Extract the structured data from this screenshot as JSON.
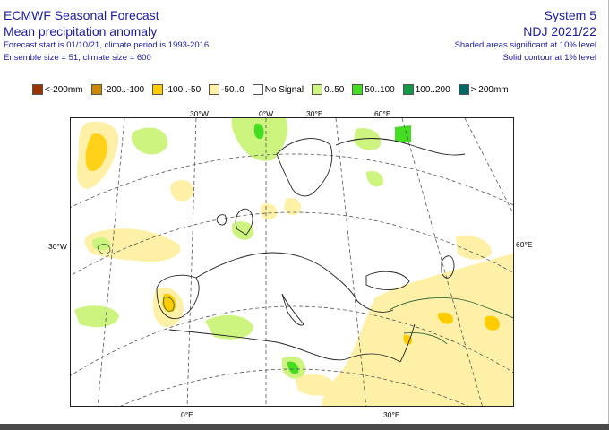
{
  "header": {
    "title_line1": "ECMWF Seasonal Forecast",
    "title_line2": "Mean precipitation anomaly",
    "info_line1": "Forecast start is 01/10/21, climate period is 1993-2016",
    "info_line2": "Ensemble size = 51, climate size = 600",
    "system": "System 5",
    "period": "NDJ 2021/22",
    "note1": "Shaded areas significant at 10% level",
    "note2": "Solid contour at 1% level"
  },
  "legend": [
    {
      "label": "<-200mm",
      "color": "#993300"
    },
    {
      "label": "-200..-100",
      "color": "#cc8800"
    },
    {
      "label": "-100..-50",
      "color": "#ffcc00"
    },
    {
      "label": "-50..0",
      "color": "#fff0a8"
    },
    {
      "label": "No Signal",
      "color": "#ffffff"
    },
    {
      "label": "0..50",
      "color": "#ccf47f"
    },
    {
      "label": "50..100",
      "color": "#44dd22"
    },
    {
      "label": "100..200",
      "color": "#119944"
    },
    {
      "label": "> 200mm",
      "color": "#006666"
    }
  ],
  "map": {
    "lon_labels_top": [
      "30°W",
      "0°W",
      "30°E",
      "60°E"
    ],
    "lon_labels_bottom": [
      "0°E",
      "30°E"
    ],
    "lat_label_left": "30°W",
    "lat_label_right": "60°E"
  }
}
